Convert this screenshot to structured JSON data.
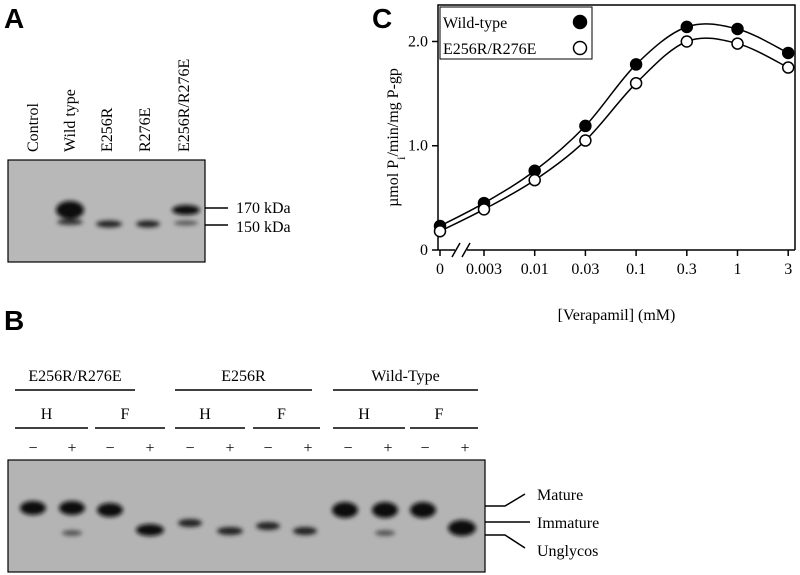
{
  "panel_a": {
    "label": "A",
    "lanes": [
      "Control",
      "Wild type",
      "E256R",
      "R276E",
      "E256R/R276E"
    ],
    "markers": [
      "170 kDa",
      "150 kDa"
    ]
  },
  "panel_b": {
    "label": "B",
    "groups": [
      {
        "name": "E256R/R276E",
        "treatments": [
          {
            "name": "H",
            "signs": [
              "−",
              "+"
            ]
          },
          {
            "name": "F",
            "signs": [
              "−",
              "+"
            ]
          }
        ]
      },
      {
        "name": "E256R",
        "treatments": [
          {
            "name": "H",
            "signs": [
              "−",
              "+"
            ]
          },
          {
            "name": "F",
            "signs": [
              "−",
              "+"
            ]
          }
        ]
      },
      {
        "name": "Wild-Type",
        "treatments": [
          {
            "name": "H",
            "signs": [
              "−",
              "+"
            ]
          },
          {
            "name": "F",
            "signs": [
              "−",
              "+"
            ]
          }
        ]
      }
    ],
    "bands": [
      "Mature",
      "Immature",
      "Unglycos"
    ]
  },
  "chart_data": {
    "type": "line",
    "panel_label": "C",
    "x_label": "[Verapamil] (mM)",
    "y_label_parts": [
      "µmol P",
      "i",
      "/min/mg P-gp"
    ],
    "categories": [
      "0",
      "0.003",
      "0.01",
      "0.03",
      "0.1",
      "0.3",
      "1",
      "3"
    ],
    "ylim": [
      0,
      2.35
    ],
    "yticks": [
      0,
      {
        "value": 1,
        "label": "1.0"
      },
      {
        "value": 2,
        "label": "2.0"
      }
    ],
    "legend": "top-left",
    "series": [
      {
        "name": "Wild-type",
        "color": "#000000",
        "marker": "filled",
        "values": [
          0.23,
          0.45,
          0.76,
          1.19,
          1.78,
          2.14,
          2.12,
          1.89
        ]
      },
      {
        "name": "E256R/R276E",
        "color": "#000000",
        "marker": "open",
        "values": [
          0.18,
          0.39,
          0.67,
          1.05,
          1.6,
          2.0,
          1.98,
          1.75
        ]
      }
    ]
  }
}
